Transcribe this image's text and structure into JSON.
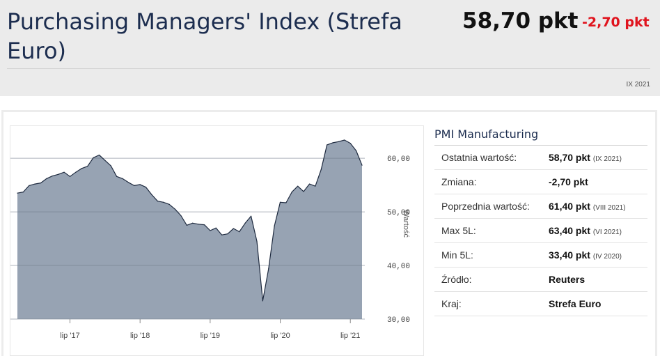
{
  "header": {
    "title": "Purchasing Managers' Index (Strefa Euro)",
    "value": "58,70 pkt",
    "change": "-2,70 pkt",
    "date": "IX 2021"
  },
  "info": {
    "title": "PMI Manufacturing",
    "rows": [
      {
        "label": "Ostatnia wartość:",
        "value": "58,70 pkt",
        "note": "(IX 2021)"
      },
      {
        "label": "Zmiana:",
        "value": "-2,70 pkt",
        "note": ""
      },
      {
        "label": "Poprzednia wartość:",
        "value": "61,40 pkt",
        "note": "(VIII 2021)"
      },
      {
        "label": "Max 5L:",
        "value": "63,40 pkt",
        "note": "(VI 2021)"
      },
      {
        "label": "Min 5L:",
        "value": "33,40 pkt",
        "note": "(IV 2020)"
      },
      {
        "label": "Źródło:",
        "value": "Reuters",
        "note": ""
      },
      {
        "label": "Kraj:",
        "value": "Strefa Euro",
        "note": ""
      }
    ]
  },
  "colors": {
    "area_fill": "#97a3b3",
    "line": "#1e2a3f",
    "change_negative": "#e0141e"
  },
  "chart_data": {
    "type": "area",
    "ylabel": "Wartość",
    "ylim": [
      30,
      66
    ],
    "y_ticks": [
      30,
      40,
      50,
      60
    ],
    "y_tick_labels": [
      "30,00",
      "40,00",
      "50,00",
      "60,00"
    ],
    "x_tick_labels": [
      "lip '17",
      "lip '18",
      "lip '19",
      "lip '20",
      "lip '21"
    ],
    "x_tick_dates": [
      "2017-07",
      "2018-07",
      "2019-07",
      "2020-07",
      "2021-07"
    ],
    "grid": true,
    "series": [
      {
        "x": [
          "2016-10",
          "2016-11",
          "2016-12",
          "2017-01",
          "2017-02",
          "2017-03",
          "2017-04",
          "2017-05",
          "2017-06",
          "2017-07",
          "2017-08",
          "2017-09",
          "2017-10",
          "2017-11",
          "2017-12",
          "2018-01",
          "2018-02",
          "2018-03",
          "2018-04",
          "2018-05",
          "2018-06",
          "2018-07",
          "2018-08",
          "2018-09",
          "2018-10",
          "2018-11",
          "2018-12",
          "2019-01",
          "2019-02",
          "2019-03",
          "2019-04",
          "2019-05",
          "2019-06",
          "2019-07",
          "2019-08",
          "2019-09",
          "2019-10",
          "2019-11",
          "2019-12",
          "2020-01",
          "2020-02",
          "2020-03",
          "2020-04",
          "2020-05",
          "2020-06",
          "2020-07",
          "2020-08",
          "2020-09",
          "2020-10",
          "2020-11",
          "2020-12",
          "2021-01",
          "2021-02",
          "2021-03",
          "2021-04",
          "2021-05",
          "2021-06",
          "2021-07",
          "2021-08",
          "2021-09"
        ],
        "values": [
          53.5,
          53.7,
          54.9,
          55.2,
          55.4,
          56.2,
          56.7,
          57.0,
          57.4,
          56.6,
          57.4,
          58.1,
          58.5,
          60.1,
          60.6,
          59.6,
          58.6,
          56.6,
          56.2,
          55.5,
          54.9,
          55.1,
          54.6,
          53.2,
          52.0,
          51.8,
          51.4,
          50.5,
          49.3,
          47.5,
          47.9,
          47.7,
          47.6,
          46.5,
          47.0,
          45.7,
          45.9,
          46.9,
          46.3,
          47.9,
          49.2,
          44.5,
          33.4,
          39.4,
          47.4,
          51.8,
          51.7,
          53.7,
          54.8,
          53.8,
          55.2,
          54.8,
          57.9,
          62.5,
          62.9,
          63.1,
          63.4,
          62.8,
          61.4,
          58.7
        ]
      }
    ]
  }
}
